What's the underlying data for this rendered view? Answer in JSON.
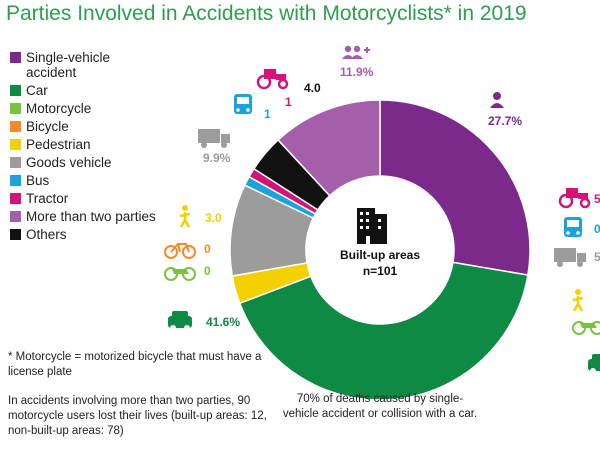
{
  "title": "Parties Involved in Accidents with Motorcyclists* in 2019",
  "legend": [
    {
      "label": "Single-vehicle accident",
      "color": "#7b2a8c"
    },
    {
      "label": "Car",
      "color": "#0f8a45"
    },
    {
      "label": "Motorcycle",
      "color": "#7cc242"
    },
    {
      "label": "Bicycle",
      "color": "#f58a2a"
    },
    {
      "label": "Pedestrian",
      "color": "#f5d000"
    },
    {
      "label": "Goods vehicle",
      "color": "#9c9c9c"
    },
    {
      "label": "Bus",
      "color": "#1aa3dc"
    },
    {
      "label": "Tractor",
      "color": "#d1147a"
    },
    {
      "label": "More than two parties",
      "color": "#a45eaa"
    },
    {
      "label": "Others",
      "color": "#111111"
    }
  ],
  "center": {
    "line1": "Built-up areas",
    "line2": "n=101"
  },
  "notes": {
    "footnote": "* Motorcycle = motorized bicycle that must have a license plate",
    "parties_note": "In accidents involving more than two parties, 90 motorcycle users lost their lives (built-up areas: 12, non-built-up areas: 78)"
  },
  "caption": "70% of deaths caused by single-vehicle accident or collision with a car.",
  "chart_data": {
    "type": "pie",
    "title": "Parties Involved in Accidents with Motorcyclists* in 2019",
    "subtitle": "Built-up areas n=101",
    "slices": [
      {
        "name": "Single-vehicle accident",
        "value": 27.7,
        "label": "27.7%",
        "color": "#7b2a8c",
        "icon": "person-icon"
      },
      {
        "name": "Car",
        "value": 41.6,
        "label": "41.6%",
        "color": "#0f8a45",
        "icon": "car-icon"
      },
      {
        "name": "Motorcycle",
        "value": 0,
        "label": "0",
        "color": "#7cc242",
        "icon": "motorcycle-icon"
      },
      {
        "name": "Bicycle",
        "value": 0,
        "label": "0",
        "color": "#f58a2a",
        "icon": "bicycle-icon"
      },
      {
        "name": "Pedestrian",
        "value": 3.0,
        "label": "3.0",
        "color": "#f5d000",
        "icon": "pedestrian-icon"
      },
      {
        "name": "Goods vehicle",
        "value": 9.9,
        "label": "9.9%",
        "color": "#9c9c9c",
        "icon": "truck-icon"
      },
      {
        "name": "Bus",
        "value": 1,
        "label": "1",
        "color": "#1aa3dc",
        "icon": "bus-icon"
      },
      {
        "name": "Tractor",
        "value": 1,
        "label": "1",
        "color": "#d1147a",
        "icon": "tractor-icon"
      },
      {
        "name": "Others",
        "value": 4.0,
        "label": "4.0",
        "color": "#111111",
        "icon": ""
      },
      {
        "name": "More than two parties",
        "value": 11.9,
        "label": "11.9%",
        "color": "#a45eaa",
        "icon": "group-icon"
      }
    ],
    "partial_second_chart": {
      "labels": [
        "5",
        "0",
        "5"
      ],
      "icons": [
        "tractor-icon",
        "bus-icon",
        "truck-icon",
        "pedestrian-icon",
        "motorcycle-icon",
        "car-icon"
      ]
    }
  }
}
